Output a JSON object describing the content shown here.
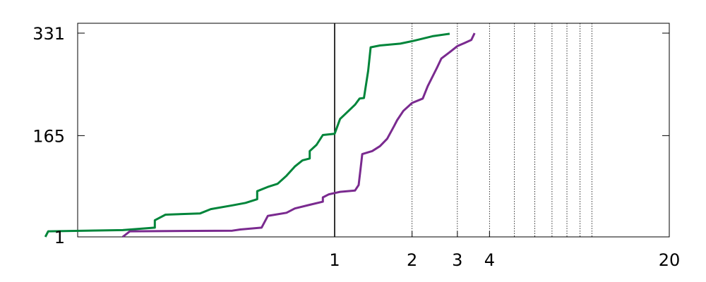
{
  "chart_data": {
    "type": "line",
    "title": "",
    "xlabel": "",
    "ylabel": "",
    "x_scale": "log",
    "xlim": [
      0.05,
      20
    ],
    "ylim": [
      1,
      331
    ],
    "x_ticks": [
      {
        "value": 1,
        "label": "1"
      },
      {
        "value": 2,
        "label": "2"
      },
      {
        "value": 3,
        "label": "3"
      },
      {
        "value": 4,
        "label": "4"
      },
      {
        "value": 20,
        "label": "20"
      }
    ],
    "y_ticks": [
      {
        "value": 1,
        "label": "1"
      },
      {
        "value": 165,
        "label": "165"
      },
      {
        "value": 331,
        "label": "331"
      }
    ],
    "vertical_lines": [
      {
        "x": 1,
        "style": "solid"
      },
      {
        "x": 2,
        "style": "dotted"
      },
      {
        "x": 3,
        "style": "dotted"
      },
      {
        "x": 4,
        "style": "dotted"
      },
      {
        "x": 5,
        "style": "dotted"
      },
      {
        "x": 6,
        "style": "dotted"
      },
      {
        "x": 7,
        "style": "dotted"
      },
      {
        "x": 8,
        "style": "dotted"
      },
      {
        "x": 9,
        "style": "dotted"
      },
      {
        "x": 10,
        "style": "dotted"
      }
    ],
    "legend": "none",
    "series": [
      {
        "color": "#00853a",
        "points": [
          [
            0.075,
            1
          ],
          [
            0.077,
            10
          ],
          [
            0.15,
            12
          ],
          [
            0.2,
            16
          ],
          [
            0.2,
            28
          ],
          [
            0.22,
            37
          ],
          [
            0.3,
            39
          ],
          [
            0.33,
            46
          ],
          [
            0.4,
            52
          ],
          [
            0.45,
            56
          ],
          [
            0.5,
            62
          ],
          [
            0.5,
            75
          ],
          [
            0.55,
            82
          ],
          [
            0.6,
            87
          ],
          [
            0.65,
            100
          ],
          [
            0.7,
            115
          ],
          [
            0.75,
            125
          ],
          [
            0.8,
            128
          ],
          [
            0.8,
            140
          ],
          [
            0.85,
            150
          ],
          [
            0.9,
            166
          ],
          [
            1.0,
            168
          ],
          [
            1.05,
            192
          ],
          [
            1.1,
            200
          ],
          [
            1.2,
            215
          ],
          [
            1.25,
            225
          ],
          [
            1.3,
            226
          ],
          [
            1.35,
            270
          ],
          [
            1.38,
            308
          ],
          [
            1.5,
            311
          ],
          [
            1.8,
            314
          ],
          [
            2.0,
            318
          ],
          [
            2.4,
            326
          ],
          [
            2.8,
            330
          ]
        ]
      },
      {
        "color": "#7a2a8f",
        "points": [
          [
            0.15,
            1
          ],
          [
            0.16,
            10
          ],
          [
            0.4,
            11
          ],
          [
            0.43,
            13
          ],
          [
            0.52,
            16
          ],
          [
            0.55,
            35
          ],
          [
            0.65,
            40
          ],
          [
            0.7,
            47
          ],
          [
            0.8,
            53
          ],
          [
            0.9,
            58
          ],
          [
            0.9,
            65
          ],
          [
            0.95,
            70
          ],
          [
            1.0,
            72
          ],
          [
            1.05,
            74
          ],
          [
            1.2,
            76
          ],
          [
            1.24,
            85
          ],
          [
            1.26,
            110
          ],
          [
            1.28,
            135
          ],
          [
            1.4,
            140
          ],
          [
            1.5,
            148
          ],
          [
            1.6,
            160
          ],
          [
            1.7,
            180
          ],
          [
            1.75,
            190
          ],
          [
            1.85,
            205
          ],
          [
            2.0,
            218
          ],
          [
            2.2,
            225
          ],
          [
            2.3,
            245
          ],
          [
            2.5,
            275
          ],
          [
            2.6,
            290
          ],
          [
            2.8,
            300
          ],
          [
            3.0,
            310
          ],
          [
            3.2,
            315
          ],
          [
            3.4,
            320
          ],
          [
            3.5,
            331
          ]
        ]
      }
    ]
  }
}
